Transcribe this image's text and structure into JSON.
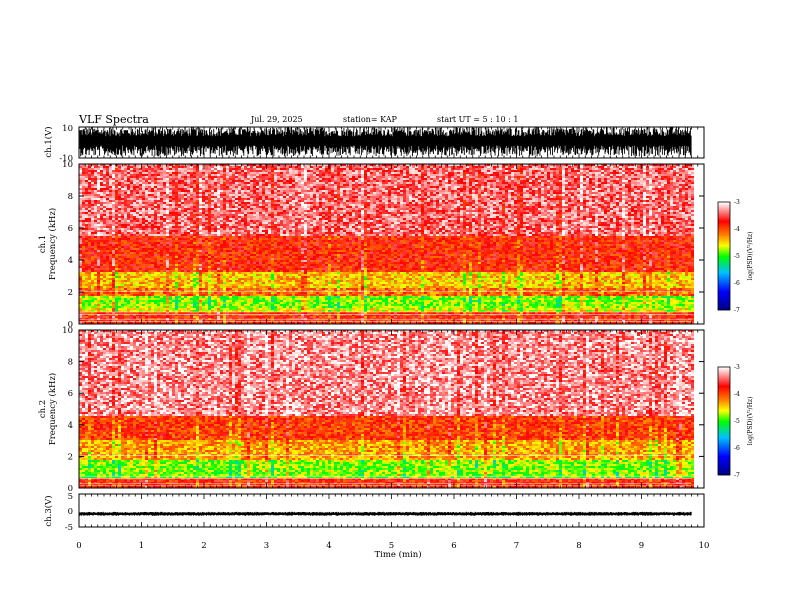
{
  "header": {
    "title": "VLF Spectra",
    "date": "Jul. 29, 2025",
    "station": "station= KAP",
    "start": "start  UT =   5  : 10 : 1"
  },
  "colors": {
    "spectrogram_scale": [
      "#000080",
      "#0000ff",
      "#00c0ff",
      "#00ff00",
      "#ffff00",
      "#ff8000",
      "#ff0000",
      "#ffffff"
    ],
    "waveform": "#000000"
  },
  "chart_data": [
    {
      "type": "line",
      "panel": "ch1-waveform",
      "ylabel": "ch.1(V)",
      "ylim": [
        -10,
        10
      ],
      "yticks": [
        "10",
        "-10"
      ],
      "xlim": [
        0,
        10
      ],
      "description_of_series": "dense oscillating waveform between roughly -8 and +10 V over ~9.8 min",
      "x_end": 9.8
    },
    {
      "type": "heatmap",
      "panel": "ch1-spectrogram",
      "ylabel": "ch.1\nFrequency (kHz)",
      "ylim": [
        0,
        10
      ],
      "yticks": [
        "0",
        "2",
        "4",
        "6",
        "8",
        "10"
      ],
      "xlim": [
        0,
        10
      ],
      "x_end": 9.8,
      "bands_khz": [
        {
          "from": 0.0,
          "to": 0.8,
          "level": -3.8
        },
        {
          "from": 0.8,
          "to": 1.0,
          "level": -4.6
        },
        {
          "from": 1.0,
          "to": 1.8,
          "level": -4.8
        },
        {
          "from": 1.8,
          "to": 2.3,
          "level": -4.1
        },
        {
          "from": 2.3,
          "to": 3.3,
          "level": -4.4
        },
        {
          "from": 3.3,
          "to": 5.5,
          "level": -3.8
        },
        {
          "from": 5.5,
          "to": 10.0,
          "level": -3.4
        }
      ],
      "colorbar": {
        "label": "log(PSD)(V²/Hz)",
        "ticks": [
          "-3",
          "-4",
          "-5",
          "-6",
          "-7"
        ],
        "range": [
          -7,
          -3
        ]
      }
    },
    {
      "type": "heatmap",
      "panel": "ch2-spectrogram",
      "ylabel": "ch.2\nFrequency (kHz)",
      "ylim": [
        0,
        10
      ],
      "yticks": [
        "0",
        "2",
        "4",
        "6",
        "8",
        "10"
      ],
      "xlim": [
        0,
        10
      ],
      "x_end": 9.8,
      "bands_khz": [
        {
          "from": 0.0,
          "to": 0.6,
          "level": -3.8
        },
        {
          "from": 0.6,
          "to": 1.8,
          "level": -4.8
        },
        {
          "from": 1.8,
          "to": 3.0,
          "level": -4.3
        },
        {
          "from": 3.0,
          "to": 4.5,
          "level": -3.9
        },
        {
          "from": 4.5,
          "to": 10.0,
          "level": -3.3
        }
      ],
      "colorbar": {
        "label": "log(PSD)(V²/Hz)",
        "ticks": [
          "-3",
          "-4",
          "-5",
          "-6",
          "-7"
        ],
        "range": [
          -7,
          -3
        ]
      }
    },
    {
      "type": "line",
      "panel": "ch3-waveform",
      "ylabel": "ch.3(V)",
      "ylim": [
        -5,
        5
      ],
      "yticks": [
        "5",
        "0",
        "-5"
      ],
      "xlim": [
        0,
        10
      ],
      "xlabel": "Time (min)",
      "xticks": [
        "0",
        "1",
        "2",
        "3",
        "4",
        "5",
        "6",
        "7",
        "8",
        "9",
        "10"
      ],
      "description_of_series": "narrow band waveform centered near -1 V, amplitude about ±0.5 V",
      "center": -1.0,
      "amplitude": 0.5,
      "x_end": 9.8
    }
  ]
}
